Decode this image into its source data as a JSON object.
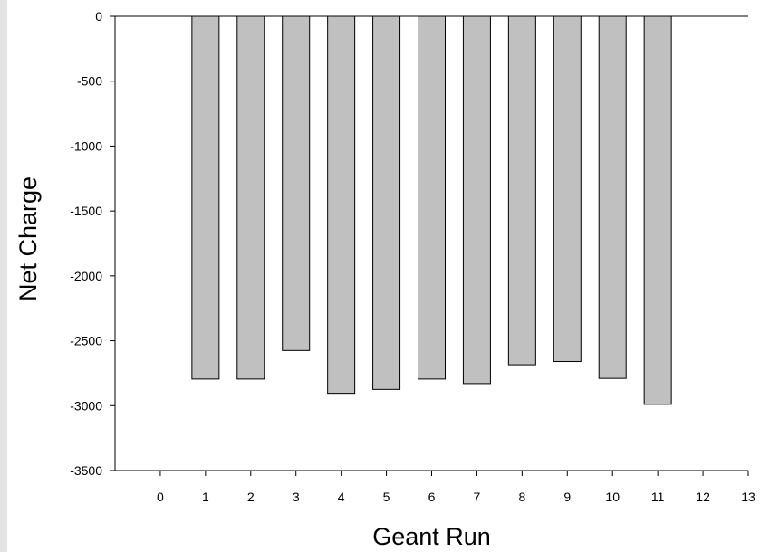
{
  "chart_data": {
    "type": "bar",
    "title": "",
    "xlabel": "Geant Run",
    "ylabel": "Net Charge",
    "xlim": [
      -1,
      13
    ],
    "ylim": [
      -3500,
      0
    ],
    "x_ticks": [
      0,
      1,
      2,
      3,
      4,
      5,
      6,
      7,
      8,
      9,
      10,
      11,
      12,
      13
    ],
    "y_ticks": [
      0,
      -500,
      -1000,
      -1500,
      -2000,
      -2500,
      -3000,
      -3500
    ],
    "categories": [
      1,
      2,
      3,
      4,
      5,
      6,
      7,
      8,
      9,
      10,
      11
    ],
    "values": [
      -2795,
      -2795,
      -2575,
      -2905,
      -2875,
      -2795,
      -2830,
      -2685,
      -2660,
      -2790,
      -2990
    ],
    "grid": false,
    "legend": "none",
    "colors": {
      "bar_fill": "#c0c0c0",
      "bar_stroke": "#000000",
      "axis": "#000000",
      "background": "#ffffff",
      "left_strip": "#e3e3e3"
    }
  }
}
